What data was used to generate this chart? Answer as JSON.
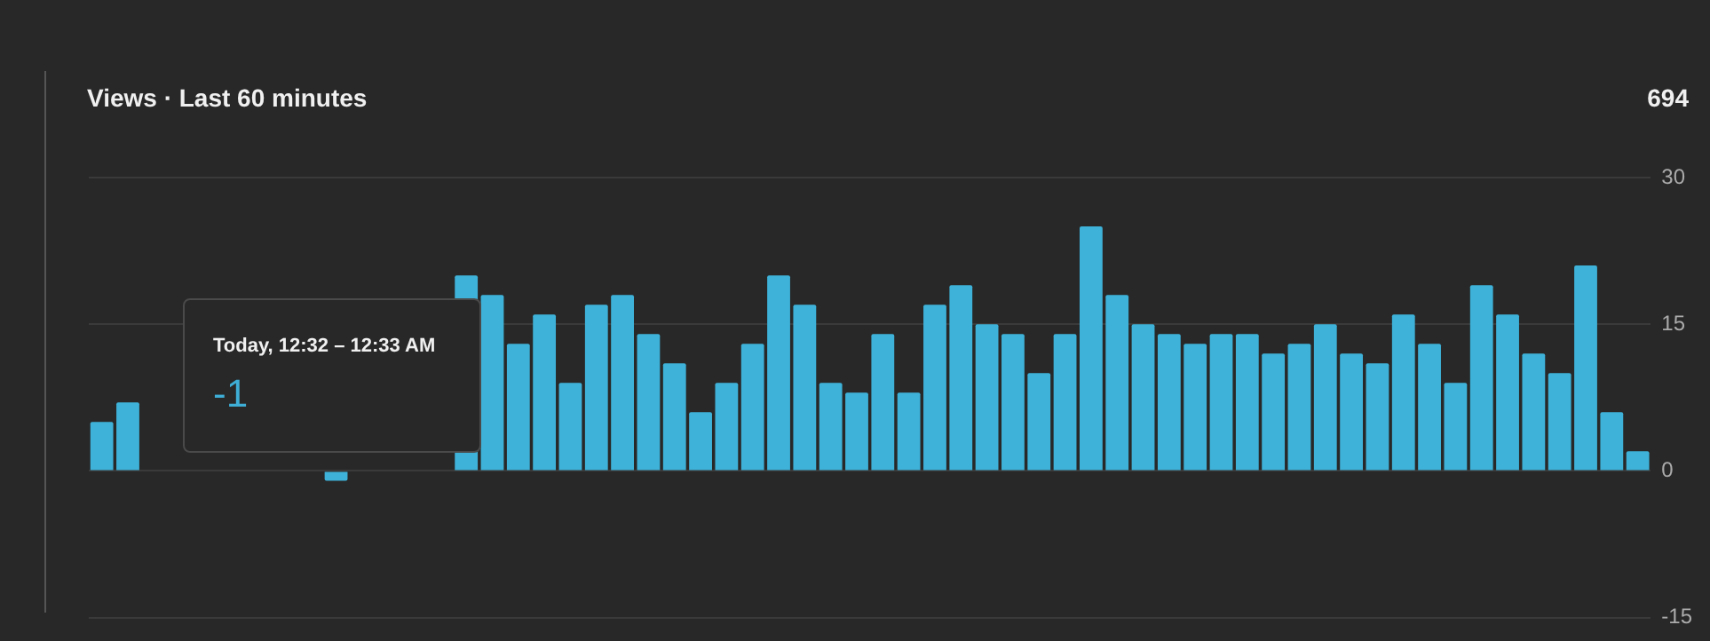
{
  "chart_data": {
    "type": "bar",
    "title": "Views · Last 60 minutes",
    "annotations": [
      "694",
      "Today, 12:32 – 12:33 AM",
      "-1"
    ],
    "categories": [
      null,
      null,
      null,
      null,
      null,
      null,
      null,
      null,
      null,
      null,
      null,
      null,
      null,
      null,
      null,
      null,
      null,
      null,
      null,
      null,
      null,
      null,
      null,
      null,
      null,
      null,
      null,
      null,
      null,
      null,
      null,
      null,
      null,
      null,
      null,
      null,
      null,
      null,
      null,
      null,
      null,
      null,
      null,
      null,
      null,
      null,
      null,
      null,
      null,
      null,
      null,
      null,
      null,
      null,
      null,
      null,
      null,
      null,
      null,
      null
    ],
    "values": [
      5,
      7,
      0,
      0,
      0,
      0,
      0,
      null,
      null,
      -1,
      null,
      null,
      null,
      null,
      20,
      18,
      13,
      16,
      9,
      17,
      18,
      14,
      11,
      6,
      9,
      13,
      20,
      17,
      9,
      8,
      14,
      8,
      17,
      19,
      15,
      14,
      10,
      14,
      25,
      18,
      15,
      14,
      13,
      14,
      14,
      12,
      13,
      15,
      12,
      11,
      16,
      13,
      9,
      19,
      16,
      12,
      10,
      21,
      6,
      2
    ],
    "color": "#3eb2d9",
    "ylim": [
      -15,
      30
    ],
    "yticks": [
      30,
      15,
      0,
      -15
    ],
    "grid": "y",
    "tick_labels": "y"
  }
}
